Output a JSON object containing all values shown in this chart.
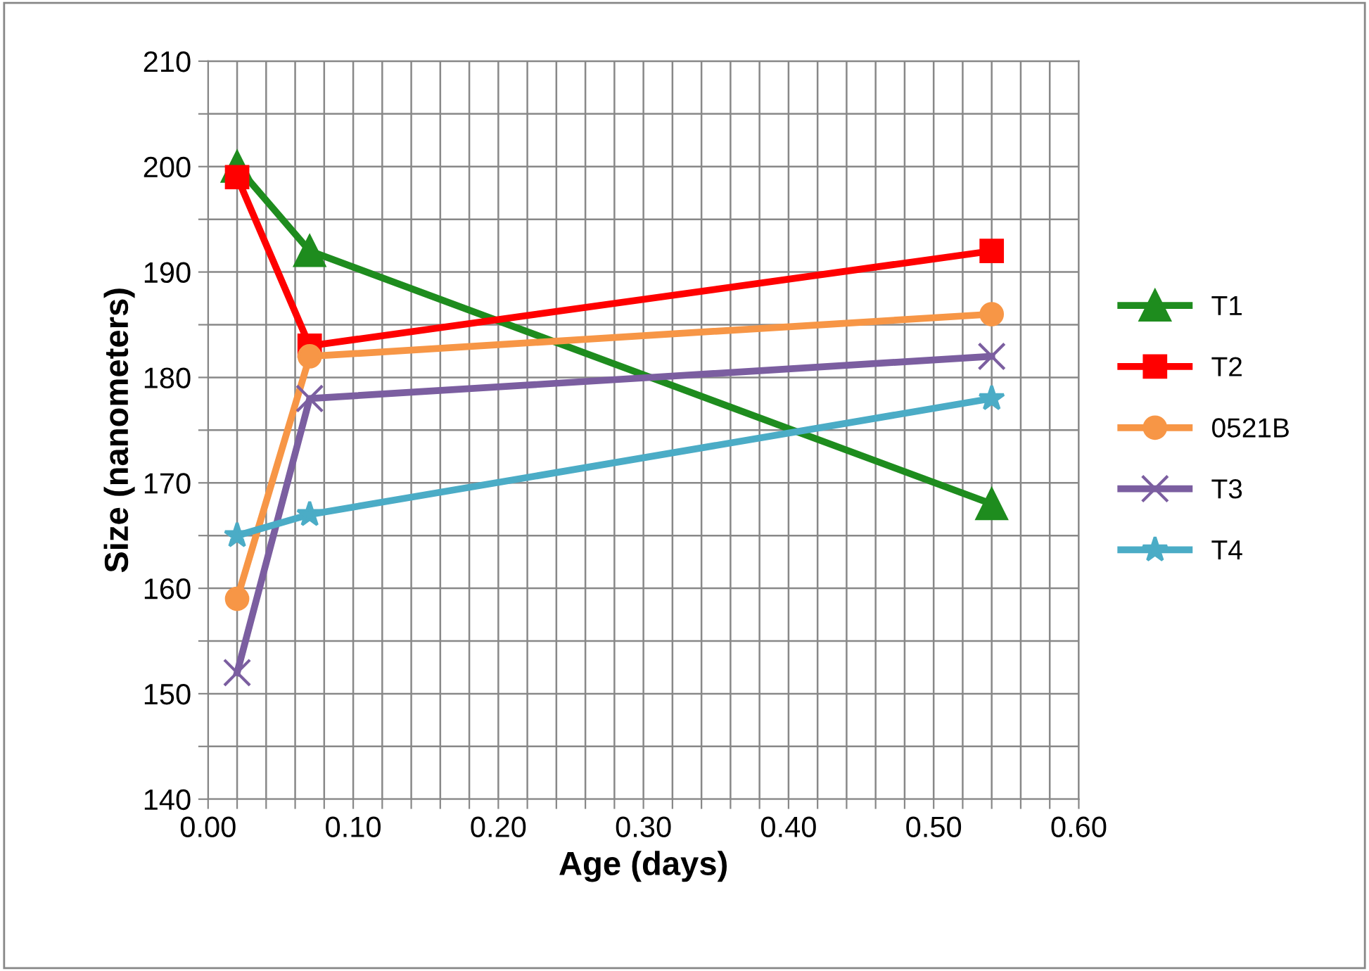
{
  "chart_data": {
    "type": "line",
    "xlabel": "Age (days)",
    "ylabel": "Size (nanometers)",
    "xlim": [
      0,
      0.6
    ],
    "ylim": [
      140,
      210
    ],
    "xticks": [
      {
        "value": 0,
        "label": "0.00"
      },
      {
        "value": 0.02,
        "label": null
      },
      {
        "value": 0.04,
        "label": null
      },
      {
        "value": 0.06,
        "label": null
      },
      {
        "value": 0.08,
        "label": null
      },
      {
        "value": 0.1,
        "label": "0.10"
      },
      {
        "value": 0.12,
        "label": null
      },
      {
        "value": 0.14,
        "label": null
      },
      {
        "value": 0.16,
        "label": null
      },
      {
        "value": 0.18,
        "label": null
      },
      {
        "value": 0.2,
        "label": "0.20"
      },
      {
        "value": 0.22,
        "label": null
      },
      {
        "value": 0.24,
        "label": null
      },
      {
        "value": 0.26,
        "label": null
      },
      {
        "value": 0.28,
        "label": null
      },
      {
        "value": 0.3,
        "label": "0.30"
      },
      {
        "value": 0.32,
        "label": null
      },
      {
        "value": 0.34,
        "label": null
      },
      {
        "value": 0.36,
        "label": null
      },
      {
        "value": 0.38,
        "label": null
      },
      {
        "value": 0.4,
        "label": "0.40"
      },
      {
        "value": 0.42,
        "label": null
      },
      {
        "value": 0.44,
        "label": null
      },
      {
        "value": 0.46,
        "label": null
      },
      {
        "value": 0.48,
        "label": null
      },
      {
        "value": 0.5,
        "label": "0.50"
      },
      {
        "value": 0.52,
        "label": null
      },
      {
        "value": 0.54,
        "label": null
      },
      {
        "value": 0.56,
        "label": null
      },
      {
        "value": 0.58,
        "label": null
      },
      {
        "value": 0.6,
        "label": "0.60"
      }
    ],
    "yticks": [
      140,
      {
        "value": 145,
        "label": null
      },
      150,
      {
        "value": 155,
        "label": null
      },
      160,
      {
        "value": 165,
        "label": null
      },
      170,
      {
        "value": 175,
        "label": null
      },
      180,
      {
        "value": 185,
        "label": null
      },
      190,
      {
        "value": 195,
        "label": null
      },
      200,
      {
        "value": 205,
        "label": null
      },
      210
    ],
    "grid": true,
    "legend": "right",
    "x": [
      0.02,
      0.07,
      0.54
    ],
    "series": [
      {
        "name": "T1",
        "color": "#1e8c1e",
        "marker": "triangle",
        "values": [
          200,
          192,
          168
        ]
      },
      {
        "name": "T2",
        "color": "#ff0000",
        "marker": "square",
        "values": [
          199,
          183,
          192
        ]
      },
      {
        "name": "0521B",
        "color": "#f79646",
        "marker": "circle",
        "values": [
          159,
          182,
          186
        ]
      },
      {
        "name": "T3",
        "color": "#7b5ea0",
        "marker": "cross",
        "values": [
          152,
          178,
          182
        ]
      },
      {
        "name": "T4",
        "color": "#4bacc6",
        "marker": "star",
        "values": [
          165,
          167,
          178
        ]
      }
    ]
  }
}
